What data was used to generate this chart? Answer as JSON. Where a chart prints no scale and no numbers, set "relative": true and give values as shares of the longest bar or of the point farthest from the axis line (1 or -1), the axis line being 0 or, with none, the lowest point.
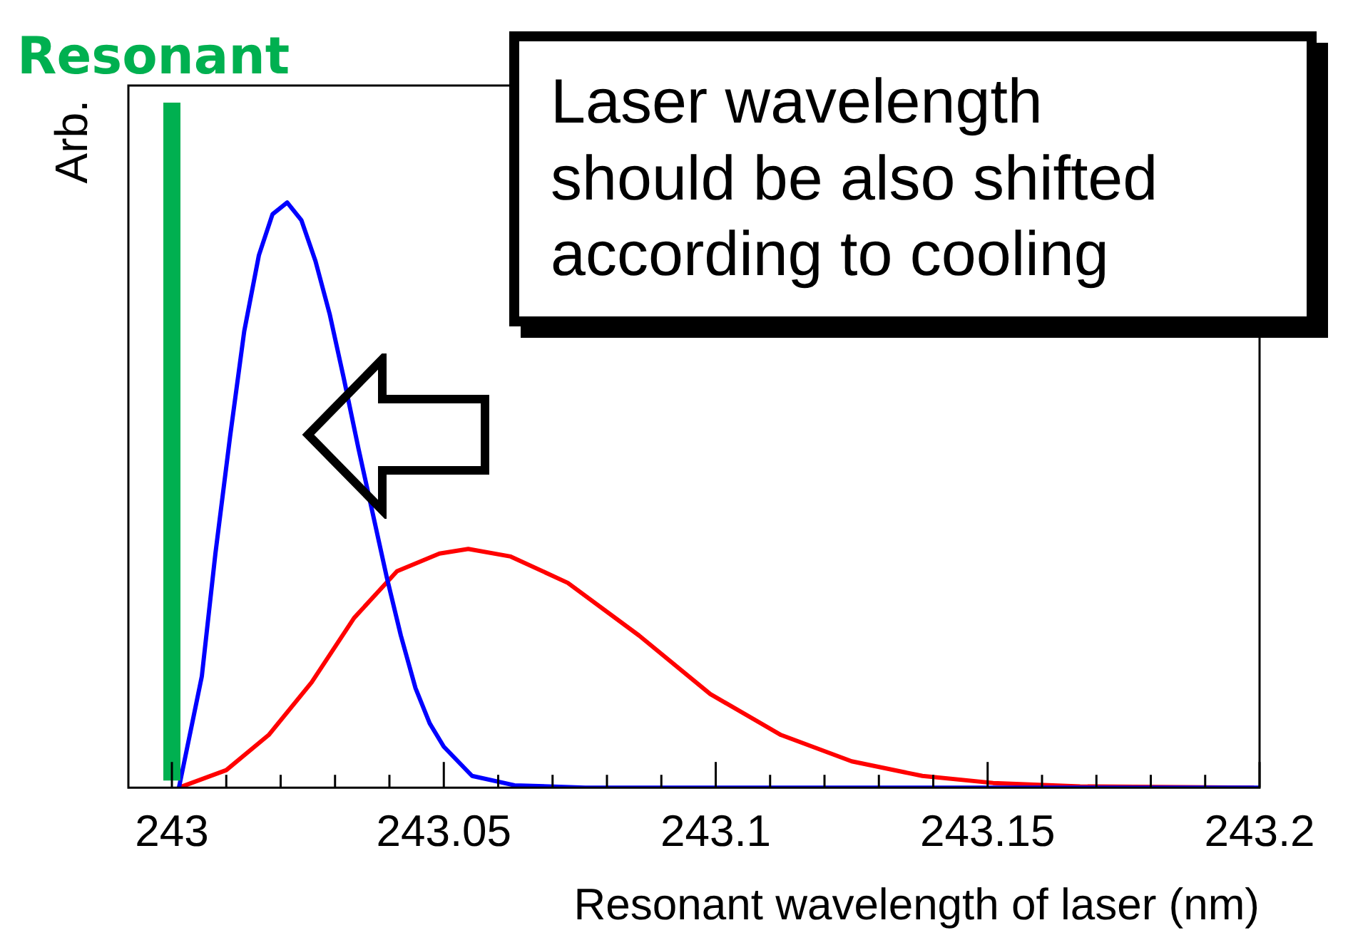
{
  "chart_data": {
    "type": "line",
    "xlabel": "Resonant wavelength of laser (nm)",
    "ylabel": "Arb.",
    "relative": true,
    "legend": false,
    "marker": "none",
    "grid": false,
    "xlim": [
      242.992,
      243.2
    ],
    "xticks": [
      243,
      {
        "value": 243.01,
        "label": null
      },
      {
        "value": 243.02,
        "label": null
      },
      {
        "value": 243.03,
        "label": null
      },
      {
        "value": 243.04,
        "label": null
      },
      243.05,
      {
        "value": 243.06,
        "label": null
      },
      {
        "value": 243.07,
        "label": null
      },
      {
        "value": 243.08,
        "label": null
      },
      {
        "value": 243.09,
        "label": null
      },
      243.1,
      {
        "value": 243.11,
        "label": null
      },
      {
        "value": 243.12,
        "label": null
      },
      {
        "value": 243.13,
        "label": null
      },
      {
        "value": 243.14,
        "label": null
      },
      243.15,
      {
        "value": 243.16,
        "label": null
      },
      {
        "value": 243.17,
        "label": null
      },
      {
        "value": 243.18,
        "label": null
      },
      {
        "value": 243.19,
        "label": null
      },
      243.2
    ],
    "series": [
      {
        "color": "#0000ff",
        "x": [
          243.0013,
          243.0055,
          243.008,
          243.0107,
          243.0133,
          243.016,
          243.0185,
          243.0212,
          243.0238,
          243.0264,
          243.029,
          243.0316,
          243.0343,
          243.0369,
          243.0395,
          243.0421,
          243.0448,
          243.0474,
          243.05,
          243.0552,
          243.063,
          243.076,
          243.2
        ],
        "values": [
          0,
          0.19,
          0.4,
          0.6,
          0.78,
          0.91,
          0.98,
          1,
          0.97,
          0.9,
          0.81,
          0.7,
          0.58,
          0.47,
          0.36,
          0.26,
          0.17,
          0.11,
          0.07,
          0.02,
          0.004,
          0,
          0
        ]
      },
      {
        "color": "#ff0000",
        "x": [
          243.0013,
          243.01,
          243.0178,
          243.0257,
          243.0335,
          243.0414,
          243.0492,
          243.0545,
          243.0623,
          243.0728,
          243.0859,
          243.099,
          243.112,
          243.125,
          243.138,
          243.151,
          243.167,
          243.199
        ],
        "values": [
          0,
          0.03,
          0.09,
          0.18,
          0.29,
          0.37,
          0.4,
          0.408,
          0.395,
          0.35,
          0.26,
          0.16,
          0.09,
          0.045,
          0.02,
          0.008,
          0.002,
          0
        ]
      }
    ],
    "ref_lines": [
      {
        "axis": "x",
        "value": 243,
        "label": "Resonant",
        "color": "#00b050"
      }
    ],
    "annotations": [
      "Laser wavelength should be also shifted according to cooling"
    ]
  }
}
